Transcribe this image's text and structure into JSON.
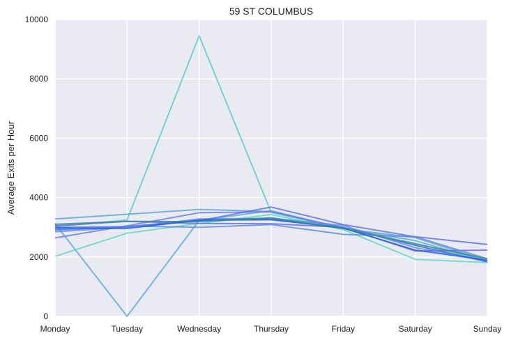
{
  "chart_data": {
    "type": "line",
    "title": "59 ST COLUMBUS",
    "xlabel": "",
    "ylabel": "Average Exits per Hour",
    "categories": [
      "Monday",
      "Tuesday",
      "Wednesday",
      "Thursday",
      "Friday",
      "Saturday",
      "Sunday"
    ],
    "yticks": [
      "0",
      "2000",
      "4000",
      "6000",
      "8000",
      "10000"
    ],
    "ylim": [
      0,
      10000
    ],
    "grid": true,
    "background": "#eaeaf2",
    "series": [
      {
        "values": [
          3020,
          3250,
          9450,
          3500,
          2960,
          2460,
          1860
        ],
        "color": "#5ec8c8"
      },
      {
        "values": [
          3120,
          0,
          3230,
          3560,
          2960,
          2550,
          1850
        ],
        "color": "#5aa6d8"
      },
      {
        "values": [
          3280,
          3440,
          3600,
          3530,
          2950,
          2650,
          1870
        ],
        "color": "#5aa2d2"
      },
      {
        "values": [
          2020,
          2800,
          3130,
          3430,
          2920,
          1920,
          1810
        ],
        "color": "#5dd8c0"
      },
      {
        "values": [
          2640,
          3050,
          3490,
          3520,
          2990,
          2390,
          1840
        ],
        "color": "#6a78e8"
      },
      {
        "values": [
          2850,
          3000,
          3280,
          3300,
          3060,
          2310,
          1880
        ],
        "color": "#5d8ce0"
      },
      {
        "values": [
          3050,
          3200,
          3130,
          3120,
          3000,
          2200,
          2230
        ],
        "color": "#6366e6"
      },
      {
        "values": [
          2930,
          3010,
          3220,
          3680,
          3090,
          2680,
          2420
        ],
        "color": "#5a6ee6"
      },
      {
        "values": [
          3000,
          3020,
          3240,
          3250,
          3000,
          2390,
          1830
        ],
        "color": "#5c7eda"
      },
      {
        "values": [
          2900,
          3040,
          3000,
          3090,
          2760,
          2680,
          1940
        ],
        "color": "#5a8cda"
      },
      {
        "values": [
          2980,
          2960,
          3240,
          3270,
          2970,
          2230,
          1890
        ],
        "color": "#1f5ee0"
      },
      {
        "values": [
          3100,
          3200,
          3190,
          3320,
          2960,
          2440,
          1940
        ],
        "color": "#2f8c8c"
      }
    ]
  }
}
